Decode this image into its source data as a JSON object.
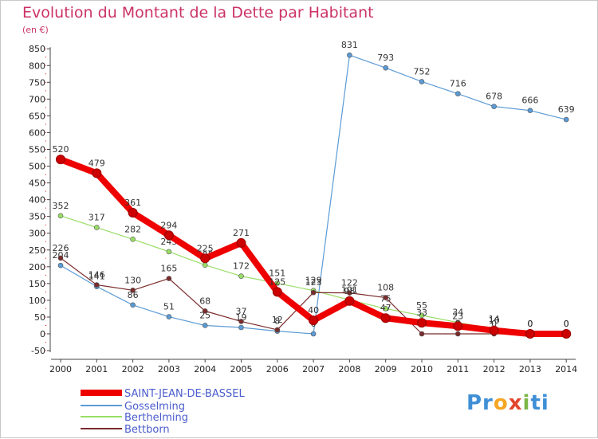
{
  "title": "Evolution du Montant de la Dette par Habitant",
  "subtitle": "(en €)",
  "logo": {
    "parts": [
      "Pr",
      "o",
      "x",
      "i",
      "ti"
    ],
    "colors": [
      "#3f8fd6",
      "#f5a623",
      "#e2452f",
      "#7ab648",
      "#3f8fd6"
    ]
  },
  "chart_data": {
    "type": "line",
    "x": [
      2000,
      2001,
      2002,
      2003,
      2004,
      2005,
      2006,
      2007,
      2008,
      2009,
      2010,
      2011,
      2012,
      2013,
      2014
    ],
    "ylim": [
      -50,
      850
    ],
    "yticks": [
      -50,
      0,
      50,
      100,
      150,
      200,
      250,
      300,
      350,
      400,
      450,
      500,
      550,
      600,
      650,
      700,
      750,
      800,
      850
    ],
    "grid": false,
    "legend_position": "bottom-left",
    "series": [
      {
        "name": "Gosselming",
        "color": "#5b9bd5",
        "values": [
          204,
          141,
          86,
          51,
          25,
          19,
          8,
          0,
          831,
          793,
          752,
          716,
          678,
          666,
          639
        ],
        "labels": [
          "204",
          "141",
          "86",
          "51",
          "25",
          "19",
          "8",
          "0",
          "831",
          "793",
          "752",
          "716",
          "678",
          "666",
          "639"
        ]
      },
      {
        "name": "Berthelming",
        "color": "#99dd66",
        "values": [
          352,
          317,
          282,
          245,
          205,
          172,
          151,
          129,
          101,
          75,
          55,
          34,
          14,
          0,
          0
        ],
        "labels": [
          "352",
          "317",
          "282",
          "245",
          "205",
          "172",
          "151",
          "129",
          "101",
          "75",
          "55",
          "34",
          "14",
          "0",
          "0"
        ]
      },
      {
        "name": "Bettborn",
        "color": "#7a2b2b",
        "values": [
          226,
          146,
          130,
          165,
          68,
          37,
          12,
          123,
          122,
          108,
          0,
          0,
          0,
          0,
          0
        ],
        "labels": [
          "226",
          "146",
          "130",
          "165",
          "68",
          "37",
          "12",
          "123",
          "122",
          "108",
          "0",
          "0",
          "0",
          "0",
          "0"
        ]
      },
      {
        "name": "SAINT-JEAN-DE-BASSEL",
        "color": "#ee0000",
        "values": [
          520,
          479,
          361,
          294,
          225,
          271,
          125,
          40,
          98,
          47,
          33,
          23,
          10,
          0,
          0
        ],
        "labels": [
          "520",
          "479",
          "361",
          "294",
          "225",
          "271",
          "125",
          "40",
          "98",
          "47",
          "33",
          "23",
          "10",
          "0",
          "0"
        ]
      }
    ],
    "legend": [
      "SAINT-JEAN-DE-BASSEL",
      "Gosselming",
      "Berthelming",
      "Bettborn"
    ]
  }
}
